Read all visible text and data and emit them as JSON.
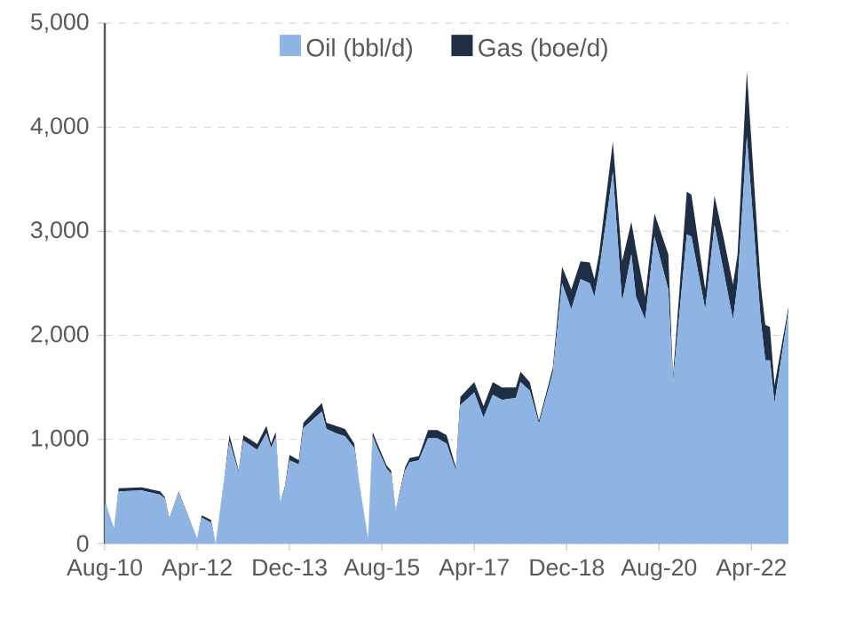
{
  "chart_data": {
    "type": "area",
    "stacked": true,
    "legend": "top",
    "grid": "y",
    "x": [
      "2010-08",
      "2010-10",
      "2010-11",
      "2011-04",
      "2011-08",
      "2011-09",
      "2011-10",
      "2011-12",
      "2012-02",
      "2012-04",
      "2012-05",
      "2012-07",
      "2012-08",
      "2012-10",
      "2012-11",
      "2013-01",
      "2013-02",
      "2013-05",
      "2013-07",
      "2013-08",
      "2013-09",
      "2013-10",
      "2013-11",
      "2013-12",
      "2014-02",
      "2014-03",
      "2014-07",
      "2014-08",
      "2014-10",
      "2014-12",
      "2015-02",
      "2015-03",
      "2015-05",
      "2015-06",
      "2015-07",
      "2015-09",
      "2015-10",
      "2015-11",
      "2016-01",
      "2016-02",
      "2016-04",
      "2016-06",
      "2016-08",
      "2016-10",
      "2016-12",
      "2017-01",
      "2017-04",
      "2017-06",
      "2017-08",
      "2017-10",
      "2018-01",
      "2018-02",
      "2018-04",
      "2018-06",
      "2018-09",
      "2018-11",
      "2019-01",
      "2019-03",
      "2019-05",
      "2019-06",
      "2019-07",
      "2019-10",
      "2019-12",
      "2020-02",
      "2020-03",
      "2020-05",
      "2020-07",
      "2020-10",
      "2020-11",
      "2021-02",
      "2021-03",
      "2021-06",
      "2021-08",
      "2021-10",
      "2021-12",
      "2022-01",
      "2022-03",
      "2022-06",
      "2022-07",
      "2022-08",
      "2022-09",
      "2022-12"
    ],
    "series": [
      {
        "name": "Oil (bbl/d)",
        "color": "#8eb4e3",
        "values": [
          390,
          150,
          500,
          510,
          470,
          430,
          230,
          490,
          260,
          50,
          250,
          200,
          0,
          650,
          980,
          680,
          990,
          900,
          1060,
          920,
          1020,
          380,
          530,
          800,
          760,
          1110,
          1270,
          1100,
          1060,
          1030,
          920,
          600,
          50,
          1030,
          920,
          720,
          670,
          310,
          700,
          780,
          800,
          1010,
          1010,
          960,
          700,
          1330,
          1450,
          1210,
          1430,
          1380,
          1400,
          1550,
          1470,
          1150,
          1640,
          2500,
          2250,
          2540,
          2500,
          2370,
          2610,
          3570,
          2320,
          2780,
          2370,
          2150,
          2950,
          2440,
          1540,
          2970,
          2950,
          2250,
          3060,
          2610,
          2150,
          2500,
          3910,
          2150,
          1760,
          1760,
          1350,
          2230
        ]
      },
      {
        "name": "Gas (boe/d)",
        "color": "#1f2d45",
        "values": [
          10,
          0,
          30,
          30,
          30,
          15,
          10,
          10,
          10,
          0,
          20,
          25,
          0,
          20,
          60,
          20,
          50,
          55,
          70,
          40,
          50,
          10,
          20,
          50,
          40,
          50,
          80,
          60,
          70,
          70,
          40,
          10,
          0,
          40,
          40,
          30,
          30,
          10,
          30,
          40,
          40,
          80,
          80,
          80,
          30,
          80,
          100,
          110,
          120,
          120,
          100,
          100,
          80,
          30,
          50,
          160,
          190,
          170,
          200,
          170,
          170,
          290,
          390,
          310,
          460,
          220,
          220,
          340,
          50,
          410,
          400,
          190,
          280,
          320,
          340,
          280,
          630,
          340,
          340,
          320,
          170,
          40
        ]
      }
    ],
    "xlim": [
      "2010-08",
      "2022-12"
    ],
    "xticks": [
      {
        "value": "2010-08",
        "label": "Aug-10"
      },
      {
        "value": "2012-04",
        "label": "Apr-12"
      },
      {
        "value": "2013-12",
        "label": "Dec-13"
      },
      {
        "value": "2015-08",
        "label": "Aug-15"
      },
      {
        "value": "2017-04",
        "label": "Apr-17"
      },
      {
        "value": "2018-12",
        "label": "Dec-18"
      },
      {
        "value": "2020-08",
        "label": "Aug-20"
      },
      {
        "value": "2022-04",
        "label": "Apr-22"
      }
    ],
    "ylim": [
      0,
      5000
    ],
    "yticks": [
      0,
      {
        "value": 1000,
        "label": "1,000"
      },
      {
        "value": 2000,
        "label": "2,000"
      },
      {
        "value": 3000,
        "label": "3,000"
      },
      {
        "value": 4000,
        "label": "4,000"
      },
      {
        "value": 5000,
        "label": "5,000"
      }
    ]
  }
}
